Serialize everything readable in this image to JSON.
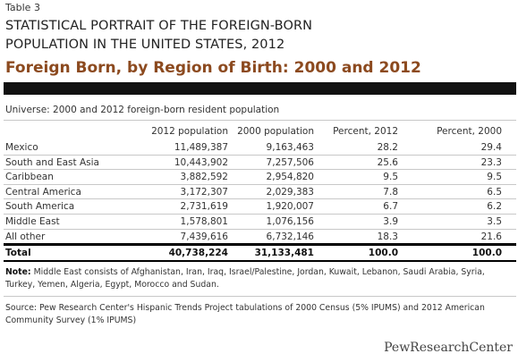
{
  "table_label": "Table 3",
  "supertitle_line1": "STATISTICAL PORTRAIT OF THE FOREIGN-BORN",
  "supertitle_line2": "POPULATION IN THE UNITED STATES, 2012",
  "main_title": "Foreign Born, by Region of Birth: 2000 and 2012",
  "universe": "Universe: 2000 and 2012 foreign-born resident population",
  "columns": [
    "",
    "2012 population",
    "2000 population",
    "Percent, 2012",
    "Percent, 2000"
  ],
  "rows": [
    [
      "Mexico",
      "11,489,387",
      "9,163,463",
      "28.2",
      "29.4"
    ],
    [
      "South and East Asia",
      "10,443,902",
      "7,257,506",
      "25.6",
      "23.3"
    ],
    [
      "Caribbean",
      "3,882,592",
      "2,954,820",
      "9.5",
      "9.5"
    ],
    [
      "Central America",
      "3,172,307",
      "2,029,383",
      "7.8",
      "6.5"
    ],
    [
      "South America",
      "2,731,619",
      "1,920,007",
      "6.7",
      "6.2"
    ],
    [
      "Middle East",
      "1,578,801",
      "1,076,156",
      "3.9",
      "3.5"
    ],
    [
      "All other",
      "7,439,616",
      "6,732,146",
      "18.3",
      "21.6"
    ]
  ],
  "total": [
    "Total",
    "40,738,224",
    "31,133,481",
    "100.0",
    "100.0"
  ],
  "note_label": "Note:",
  "note_text": " Middle East consists of Afghanistan, Iran, Iraq, Israel/Palestine, Jordan, Kuwait, Lebanon, Saudi Arabia, Syria, Turkey, Yemen, Algeria, Egypt, Morocco and Sudan.",
  "source_text": "Source: Pew Research Center's Hispanic Trends Project tabulations of 2000 Census (5% IPUMS) and 2012 American Community Survey (1% IPUMS)",
  "logo_text": "PewResearchCenter",
  "colors": {
    "title_brown": "#8c4a1f",
    "rule": "#c8c8c8",
    "bar": "#111111"
  }
}
